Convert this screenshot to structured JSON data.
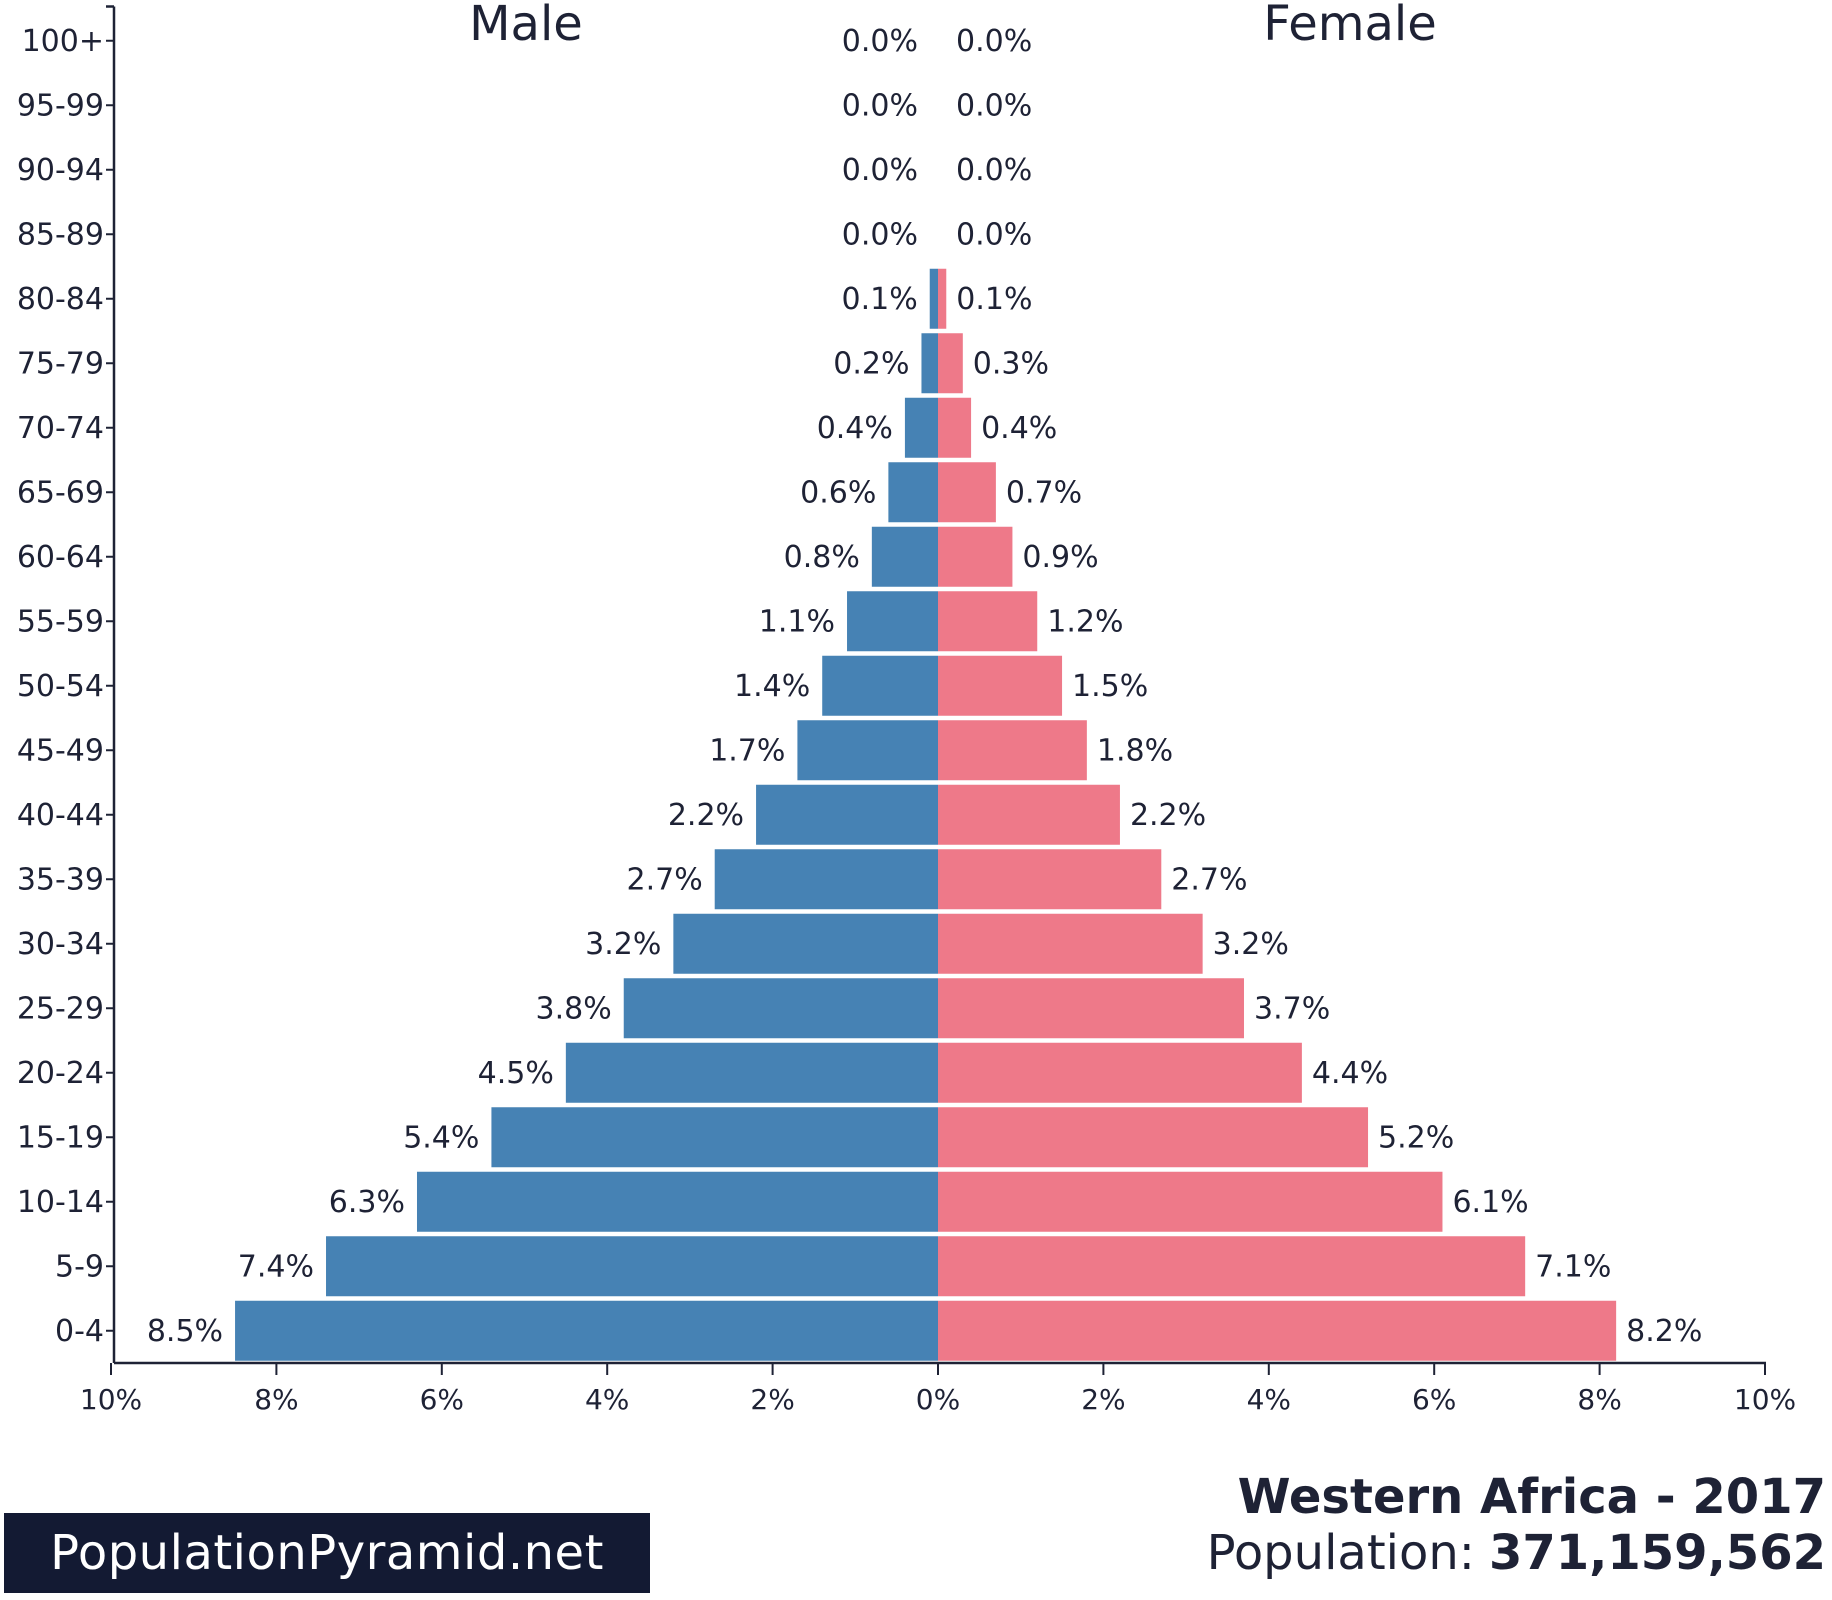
{
  "chart_data": {
    "type": "bar",
    "orientation": "horizontal-pyramid",
    "categories": [
      "0-4",
      "5-9",
      "10-14",
      "15-19",
      "20-24",
      "25-29",
      "30-34",
      "35-39",
      "40-44",
      "45-49",
      "50-54",
      "55-59",
      "60-64",
      "65-69",
      "70-74",
      "75-79",
      "80-84",
      "85-89",
      "90-94",
      "95-99",
      "100+"
    ],
    "series": [
      {
        "name": "Male",
        "values": [
          8.5,
          7.4,
          6.3,
          5.4,
          4.5,
          3.8,
          3.2,
          2.7,
          2.2,
          1.7,
          1.4,
          1.1,
          0.8,
          0.6,
          0.4,
          0.2,
          0.1,
          0.0,
          0.0,
          0.0,
          0.0
        ],
        "labels": [
          "8.5%",
          "7.4%",
          "6.3%",
          "5.4%",
          "4.5%",
          "3.8%",
          "3.2%",
          "2.7%",
          "2.2%",
          "1.7%",
          "1.4%",
          "1.1%",
          "0.8%",
          "0.6%",
          "0.4%",
          "0.2%",
          "0.1%",
          "0.0%",
          "0.0%",
          "0.0%",
          "0.0%"
        ],
        "color": "#4682b4"
      },
      {
        "name": "Female",
        "values": [
          8.2,
          7.1,
          6.1,
          5.2,
          4.4,
          3.7,
          3.2,
          2.7,
          2.2,
          1.8,
          1.5,
          1.2,
          0.9,
          0.7,
          0.4,
          0.3,
          0.1,
          0.0,
          0.0,
          0.0,
          0.0
        ],
        "labels": [
          "8.2%",
          "7.1%",
          "6.1%",
          "5.2%",
          "4.4%",
          "3.7%",
          "3.2%",
          "2.7%",
          "2.2%",
          "1.8%",
          "1.5%",
          "1.2%",
          "0.9%",
          "0.7%",
          "0.4%",
          "0.3%",
          "0.1%",
          "0.0%",
          "0.0%",
          "0.0%",
          "0.0%"
        ],
        "color": "#ee7989"
      }
    ],
    "x_ticks": [
      "10%",
      "8%",
      "6%",
      "4%",
      "2%",
      "0%",
      "2%",
      "4%",
      "6%",
      "8%",
      "10%"
    ],
    "xlim": [
      -10,
      10
    ],
    "grid": false,
    "title": "Western Africa - 2017",
    "population_label": "Population:",
    "population_value": "371,159,562"
  },
  "brand": "PopulationPyramid.net"
}
